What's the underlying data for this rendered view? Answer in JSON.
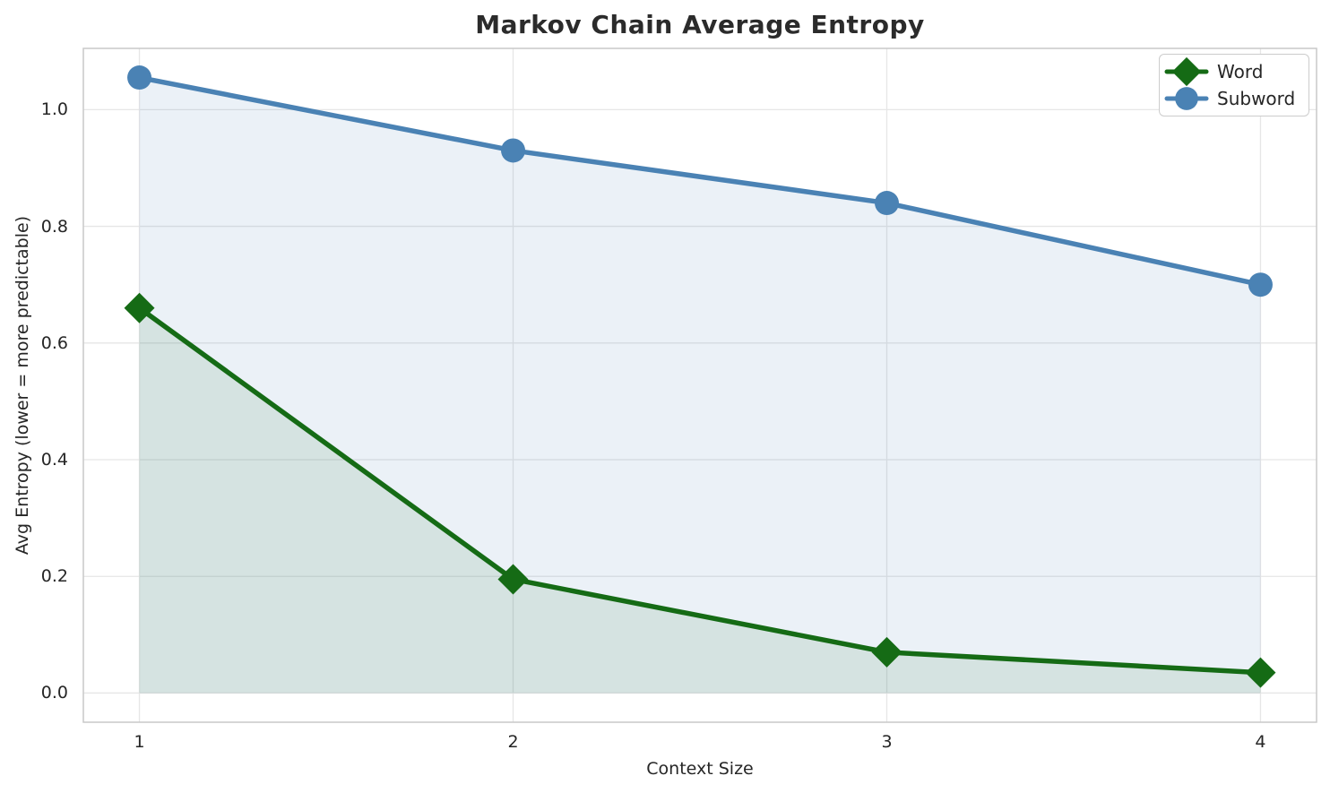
{
  "chart_data": {
    "type": "line",
    "title": "Markov Chain Average Entropy",
    "xlabel": "Context Size",
    "ylabel": "Avg Entropy (lower = more predictable)",
    "x": [
      1,
      2,
      3,
      4
    ],
    "series": [
      {
        "name": "Word",
        "values": [
          0.66,
          0.195,
          0.07,
          0.035
        ],
        "color": "#156b15",
        "marker": "diamond",
        "fill_alpha": 0.1
      },
      {
        "name": "Subword",
        "values": [
          1.055,
          0.93,
          0.84,
          0.7
        ],
        "color": "#4a82b4",
        "marker": "circle",
        "fill_alpha": 0.11
      }
    ],
    "fill_baseline": 0,
    "xlim": [
      0.85,
      4.15
    ],
    "ylim": [
      -0.05,
      1.105
    ],
    "xticks": [
      "1",
      "2",
      "3",
      "4"
    ],
    "xtick_values": [
      1,
      2,
      3,
      4
    ],
    "yticks": [
      "0.0",
      "0.2",
      "0.4",
      "0.6",
      "0.8",
      "1.0"
    ],
    "ytick_values": [
      0.0,
      0.2,
      0.4,
      0.6,
      0.8,
      1.0
    ],
    "grid": true,
    "legend_position": "upper right",
    "colors": {
      "background": "#ffffff",
      "grid": "#e6e6e6",
      "spine": "#c9c9c9",
      "text": "#262626"
    }
  }
}
